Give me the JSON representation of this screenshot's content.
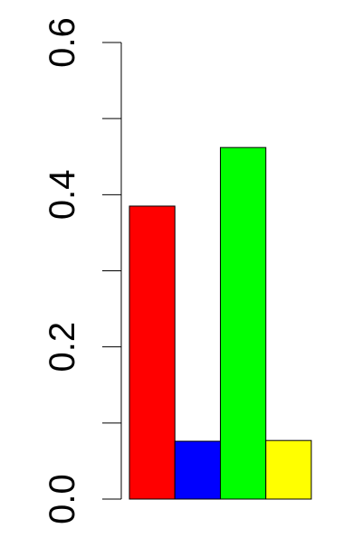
{
  "chart_data": {
    "type": "bar",
    "ylim": [
      0,
      0.6
    ],
    "yticks": [
      0,
      0.1,
      0.2,
      0.3,
      0.4,
      0.5,
      0.6
    ],
    "ytick_labels": [
      {
        "value": 0.0,
        "label": "0.0"
      },
      {
        "value": 0.2,
        "label": "0.2"
      },
      {
        "value": 0.4,
        "label": "0.4"
      },
      {
        "value": 0.6,
        "label": "0.6"
      }
    ],
    "values": [
      0.385,
      0.076,
      0.462,
      0.077
    ],
    "colors": [
      "#ff0000",
      "#0000ff",
      "#00ff00",
      "#ffff00"
    ],
    "bar_border_color": "#000000",
    "axis_color": "#000000",
    "background": "#ffffff",
    "grid": false,
    "legend": "none"
  }
}
